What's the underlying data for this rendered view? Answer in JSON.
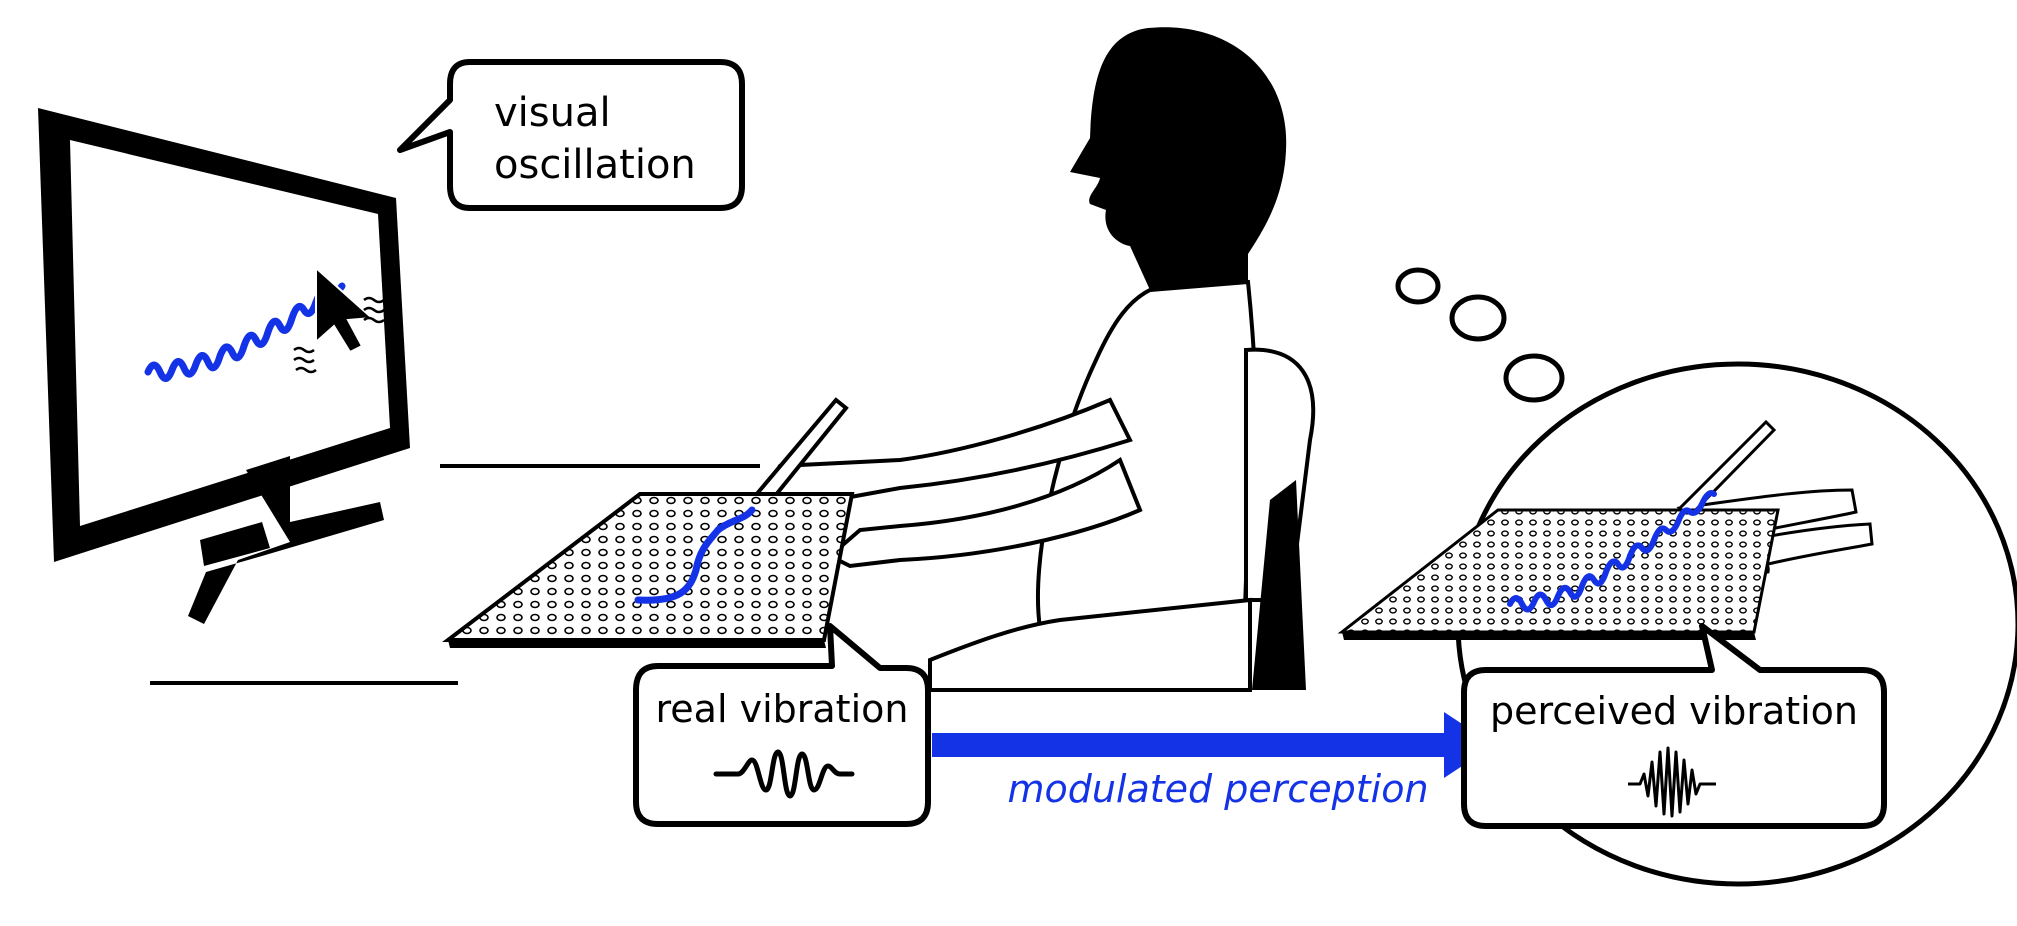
{
  "callouts": {
    "visual": {
      "line1": "visual",
      "line2": "oscillation"
    },
    "real": {
      "label": "real vibration"
    },
    "perceived": {
      "label": "perceived vibration"
    }
  },
  "arrow": {
    "label": "modulated perception"
  },
  "colors": {
    "accent": "#1432e6",
    "ink": "#000000",
    "paper": "#ffffff"
  },
  "icons": [
    "monitor-icon",
    "cursor-arrow-icon",
    "person-silhouette-icon",
    "pen-icon",
    "tablet-icon",
    "chair-icon",
    "thought-bubble-icon",
    "waveform-icon"
  ]
}
